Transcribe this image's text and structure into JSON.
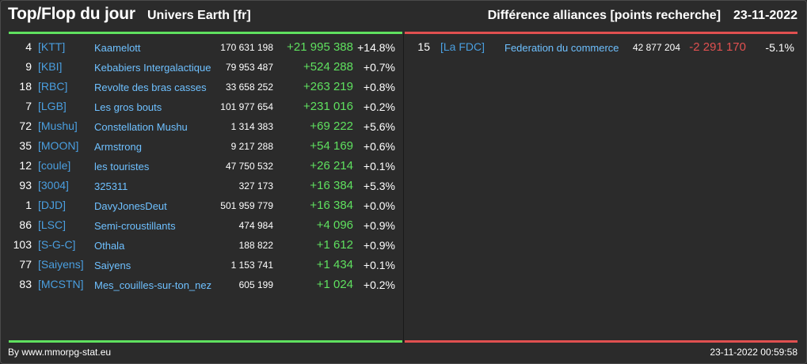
{
  "header": {
    "title": "Top/Flop du jour",
    "server": "Univers Earth [fr]",
    "category": "Différence alliances [points recherche]",
    "date": "23-11-2022"
  },
  "colors": {
    "top": "#5fe05f",
    "flop": "#e05050",
    "tag": "#4a9fe0",
    "name": "#6ec0ff"
  },
  "top": [
    {
      "rank": "4",
      "tag": "[KTT]",
      "name": "Kaamelott",
      "points": "170 631 198",
      "diff": "+21 995 388",
      "pct": "+14.8%"
    },
    {
      "rank": "9",
      "tag": "[KBI]",
      "name": "Kebabiers Intergalactique",
      "points": "79 953 487",
      "diff": "+524 288",
      "pct": "+0.7%"
    },
    {
      "rank": "18",
      "tag": "[RBC]",
      "name": "Revolte des bras casses",
      "points": "33 658 252",
      "diff": "+263 219",
      "pct": "+0.8%"
    },
    {
      "rank": "7",
      "tag": "[LGB]",
      "name": "Les gros bouts",
      "points": "101 977 654",
      "diff": "+231 016",
      "pct": "+0.2%"
    },
    {
      "rank": "72",
      "tag": "[Mushu]",
      "name": "Constellation Mushu",
      "points": "1 314 383",
      "diff": "+69 222",
      "pct": "+5.6%"
    },
    {
      "rank": "35",
      "tag": "[MOON]",
      "name": "Armstrong",
      "points": "9 217 288",
      "diff": "+54 169",
      "pct": "+0.6%"
    },
    {
      "rank": "12",
      "tag": "[coule]",
      "name": "les touristes",
      "points": "47 750 532",
      "diff": "+26 214",
      "pct": "+0.1%"
    },
    {
      "rank": "93",
      "tag": "[3004]",
      "name": "325311",
      "points": "327 173",
      "diff": "+16 384",
      "pct": "+5.3%"
    },
    {
      "rank": "1",
      "tag": "[DJD]",
      "name": "DavyJonesDeut",
      "points": "501 959 779",
      "diff": "+16 384",
      "pct": "+0.0%"
    },
    {
      "rank": "86",
      "tag": "[LSC]",
      "name": "Semi-croustillants",
      "points": "474 984",
      "diff": "+4 096",
      "pct": "+0.9%"
    },
    {
      "rank": "103",
      "tag": "[S-G-C]",
      "name": "Othala",
      "points": "188 822",
      "diff": "+1 612",
      "pct": "+0.9%"
    },
    {
      "rank": "77",
      "tag": "[Saiyens]",
      "name": "Saiyens",
      "points": "1 153 741",
      "diff": "+1 434",
      "pct": "+0.1%"
    },
    {
      "rank": "83",
      "tag": "[MCSTN]",
      "name": "Mes_couilles-sur-ton_nez",
      "points": "605 199",
      "diff": "+1 024",
      "pct": "+0.2%"
    }
  ],
  "flop": [
    {
      "rank": "15",
      "tag": "[La FDC]",
      "name": "Federation du commerce",
      "points": "42 877 204",
      "diff": "-2 291 170",
      "pct": "-5.1%"
    }
  ],
  "footer": {
    "credit": "By www.mmorpg-stat.eu",
    "timestamp": "23-11-2022 00:59:58"
  }
}
